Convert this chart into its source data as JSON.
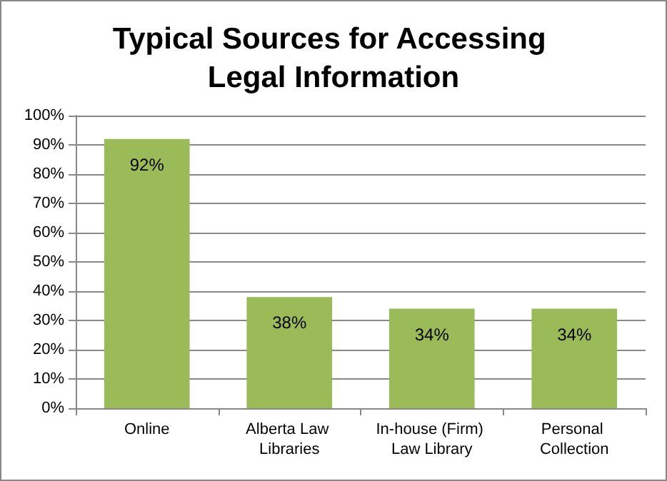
{
  "chart_data": {
    "type": "bar",
    "title": "Typical Sources for Accessing Legal Information",
    "categories": [
      "Online",
      "Alberta Law Libraries",
      "In-house (Firm) Law Library",
      "Personal Collection"
    ],
    "values": [
      92,
      38,
      34,
      34
    ],
    "color": "#9bbb59",
    "value_labels": [
      "92%",
      "38%",
      "34%",
      "34%"
    ],
    "ylim": [
      0,
      100
    ],
    "yticks": [
      {
        "value": 0,
        "label": "0%"
      },
      {
        "value": 10,
        "label": "10%"
      },
      {
        "value": 20,
        "label": "20%"
      },
      {
        "value": 30,
        "label": "30%"
      },
      {
        "value": 40,
        "label": "40%"
      },
      {
        "value": 50,
        "label": "50%"
      },
      {
        "value": 60,
        "label": "60%"
      },
      {
        "value": 70,
        "label": "70%"
      },
      {
        "value": 80,
        "label": "80%"
      },
      {
        "value": 90,
        "label": "90%"
      },
      {
        "value": 100,
        "label": "100%"
      }
    ],
    "grid": "y"
  }
}
